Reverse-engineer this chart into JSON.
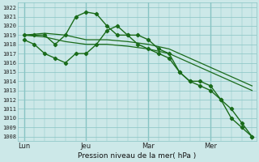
{
  "xlabel": "Pression niveau de la mer( hPa )",
  "bg_color": "#cce8e8",
  "grid_color": "#88c4c4",
  "line_color": "#1a6b1a",
  "ylim": [
    1007.5,
    1022.5
  ],
  "yticks": [
    1008,
    1009,
    1010,
    1011,
    1012,
    1013,
    1014,
    1015,
    1016,
    1017,
    1018,
    1019,
    1020,
    1021,
    1022
  ],
  "xtick_labels": [
    "Lun",
    "Jeu",
    "Mar",
    "Mer"
  ],
  "xtick_positions": [
    0,
    3,
    6,
    9
  ],
  "vlines": [
    0,
    3,
    6,
    9
  ],
  "xlim": [
    -0.3,
    11.2
  ],
  "series": [
    {
      "x": [
        0,
        1,
        2,
        3,
        4,
        5,
        6,
        7,
        8,
        9,
        10,
        11
      ],
      "y": [
        1019.0,
        1019.2,
        1019.0,
        1018.5,
        1018.5,
        1018.3,
        1018.0,
        1017.5,
        1016.5,
        1015.5,
        1014.5,
        1013.5
      ],
      "marker": false,
      "lw": 0.9
    },
    {
      "x": [
        0,
        1,
        2,
        3,
        4,
        5,
        6,
        7,
        8,
        9,
        10,
        11
      ],
      "y": [
        1019.0,
        1018.8,
        1018.3,
        1018.0,
        1018.0,
        1017.8,
        1017.5,
        1017.0,
        1016.0,
        1015.0,
        1014.0,
        1013.0
      ],
      "marker": false,
      "lw": 0.9
    },
    {
      "x": [
        0,
        0.5,
        1,
        1.5,
        2,
        2.5,
        3,
        3.5,
        4,
        4.5,
        5,
        5.5,
        6,
        6.5,
        7,
        7.5,
        8,
        8.5,
        9,
        9.5,
        10,
        10.5,
        11
      ],
      "y": [
        1019,
        1019,
        1019,
        1018,
        1019,
        1021,
        1021.5,
        1021.3,
        1020,
        1019,
        1019,
        1019,
        1018.5,
        1017.5,
        1017,
        1015,
        1014,
        1014,
        1013.5,
        1012,
        1011,
        1009.5,
        1008
      ],
      "marker": true,
      "lw": 1.0
    },
    {
      "x": [
        0,
        0.5,
        1,
        1.5,
        2,
        2.5,
        3,
        3.5,
        4,
        4.5,
        5,
        5.5,
        6,
        6.5,
        7,
        7.5,
        8,
        8.5,
        9,
        9.5,
        10,
        10.5,
        11
      ],
      "y": [
        1018.5,
        1018,
        1017,
        1016.5,
        1016,
        1017,
        1017,
        1018,
        1019.5,
        1020,
        1019,
        1018,
        1017.5,
        1017,
        1016.5,
        1015,
        1014,
        1013.5,
        1013,
        1012,
        1010,
        1009,
        1008
      ],
      "marker": true,
      "lw": 1.0
    }
  ]
}
